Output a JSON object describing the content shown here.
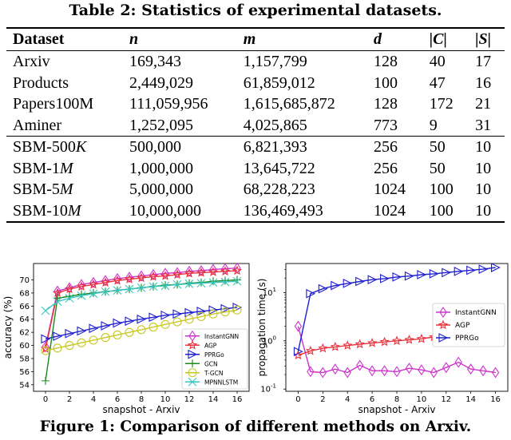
{
  "table": {
    "caption": "Table 2: Statistics of experimental datasets.",
    "headers": [
      "Dataset",
      "n",
      "m",
      "d",
      "|C|",
      "|S|"
    ],
    "rows_group1": [
      [
        "Arxiv",
        "169,343",
        "1,157,799",
        "128",
        "40",
        "17"
      ],
      [
        "Products",
        "2,449,029",
        "61,859,012",
        "100",
        "47",
        "16"
      ],
      [
        "Papers100M",
        "111,059,956",
        "1,615,685,872",
        "128",
        "172",
        "21"
      ],
      [
        "Aminer",
        "1,252,095",
        "4,025,865",
        "773",
        "9",
        "31"
      ]
    ],
    "rows_group2": [
      [
        "SBM-500K",
        "500,000",
        "6,821,393",
        "256",
        "50",
        "10"
      ],
      [
        "SBM-1M",
        "1,000,000",
        "13,645,722",
        "256",
        "50",
        "10"
      ],
      [
        "SBM-5M",
        "5,000,000",
        "68,228,223",
        "1024",
        "100",
        "10"
      ],
      [
        "SBM-10M",
        "10,000,000",
        "136,469,493",
        "1024",
        "100",
        "10"
      ]
    ]
  },
  "figure_caption": "Figure 1: Comparison of different methods on Arxiv.",
  "chart_data": [
    {
      "type": "line",
      "xlabel": "snapshot - Arxiv",
      "ylabel": "accuracy (%)",
      "xlim": [
        -1,
        17
      ],
      "ylim": [
        53,
        72.5
      ],
      "xticks": [
        0,
        2,
        4,
        6,
        8,
        10,
        12,
        14,
        16
      ],
      "yticks": [
        54,
        56,
        58,
        60,
        62,
        64,
        66,
        68,
        70
      ],
      "legend_position": "lower-right",
      "x": [
        0,
        1,
        2,
        3,
        4,
        5,
        6,
        7,
        8,
        9,
        10,
        11,
        12,
        13,
        14,
        15,
        16
      ],
      "series": [
        {
          "name": "InstantGNN",
          "color": "#cc33cc",
          "marker": "diamond",
          "values": [
            59.8,
            68.3,
            68.8,
            69.3,
            69.6,
            69.9,
            70.2,
            70.4,
            70.6,
            70.8,
            71.0,
            71.1,
            71.3,
            71.4,
            71.6,
            71.7,
            71.8
          ]
        },
        {
          "name": "AGP",
          "color": "#e8323c",
          "marker": "star",
          "values": [
            59.5,
            68.0,
            68.6,
            69.0,
            69.3,
            69.6,
            69.9,
            70.1,
            70.3,
            70.5,
            70.6,
            70.8,
            71.0,
            71.1,
            71.2,
            71.3,
            71.4
          ]
        },
        {
          "name": "PPRGo",
          "color": "#1f1fd0",
          "marker": "triangle-right",
          "values": [
            61.0,
            61.4,
            61.8,
            62.2,
            62.6,
            63.0,
            63.4,
            63.7,
            64.0,
            64.3,
            64.6,
            64.8,
            65.0,
            65.2,
            65.4,
            65.6,
            65.8
          ]
        },
        {
          "name": "GCN",
          "color": "#1a8a1a",
          "marker": "plus",
          "values": [
            54.6,
            67.2,
            67.5,
            67.8,
            68.0,
            68.2,
            68.4,
            68.6,
            68.8,
            69.0,
            69.2,
            69.3,
            69.5,
            69.6,
            69.8,
            69.9,
            70.0
          ]
        },
        {
          "name": "T-GCN",
          "color": "#c8c820",
          "marker": "circle",
          "values": [
            59.2,
            59.6,
            60.0,
            60.4,
            60.8,
            61.2,
            61.6,
            62.0,
            62.4,
            62.8,
            63.2,
            63.6,
            64.0,
            64.4,
            64.8,
            65.1,
            65.4
          ]
        },
        {
          "name": "MPNNLSTM",
          "color": "#33c4c4",
          "marker": "x",
          "values": [
            65.3,
            66.7,
            67.2,
            67.6,
            67.9,
            68.2,
            68.4,
            68.6,
            68.8,
            69.0,
            69.1,
            69.3,
            69.4,
            69.5,
            69.6,
            69.7,
            69.8
          ]
        }
      ]
    },
    {
      "type": "line",
      "xlabel": "snapshot - Arxiv",
      "ylabel": "propagation time (s)",
      "yscale": "log",
      "xlim": [
        -1,
        17
      ],
      "ylim": [
        0.09,
        40
      ],
      "xticks": [
        0,
        2,
        4,
        6,
        8,
        10,
        12,
        14,
        16
      ],
      "yticks": [
        0.1,
        1,
        10
      ],
      "ytick_labels": [
        "10",
        "10",
        "10"
      ],
      "ytick_exponents": [
        "-1",
        "0",
        "1"
      ],
      "legend_position": "center-right",
      "x": [
        0,
        1,
        2,
        3,
        4,
        5,
        6,
        7,
        8,
        9,
        10,
        11,
        12,
        13,
        14,
        15,
        16
      ],
      "series": [
        {
          "name": "InstantGNN",
          "color": "#cc33cc",
          "marker": "diamond",
          "values": [
            2.0,
            0.23,
            0.22,
            0.26,
            0.22,
            0.31,
            0.24,
            0.24,
            0.23,
            0.27,
            0.25,
            0.22,
            0.28,
            0.36,
            0.26,
            0.24,
            0.22
          ]
        },
        {
          "name": "AGP",
          "color": "#e8323c",
          "marker": "star",
          "values": [
            0.5,
            0.62,
            0.7,
            0.75,
            0.8,
            0.85,
            0.9,
            0.95,
            1.0,
            1.05,
            1.1,
            1.2,
            1.3,
            1.4,
            1.5,
            1.65,
            1.8
          ]
        },
        {
          "name": "PPRGo",
          "color": "#1f1fd0",
          "marker": "triangle-right",
          "values": [
            0.6,
            9.5,
            12.0,
            14.0,
            15.5,
            17.0,
            18.5,
            19.5,
            21.0,
            22.0,
            23.5,
            24.5,
            26.0,
            27.5,
            29.0,
            30.5,
            33.0
          ]
        }
      ]
    }
  ]
}
